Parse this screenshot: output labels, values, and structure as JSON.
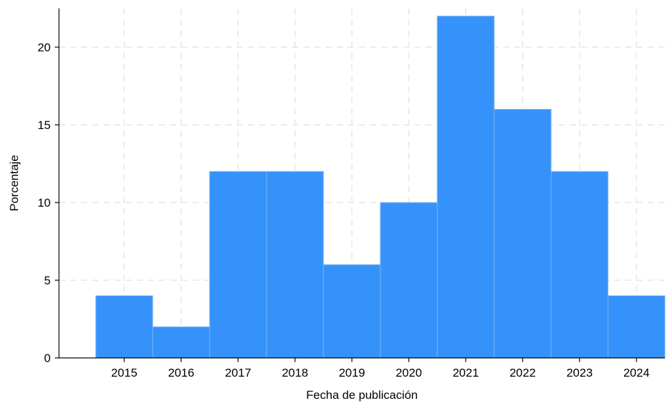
{
  "chart_data": {
    "type": "bar",
    "categories": [
      "2015",
      "2016",
      "2017",
      "2018",
      "2019",
      "2020",
      "2021",
      "2022",
      "2023",
      "2024"
    ],
    "values": [
      4,
      2,
      12,
      12,
      6,
      10,
      22,
      16,
      12,
      4
    ],
    "xlabel": "Fecha de publicación",
    "ylabel": "Porcentaje",
    "ylim": [
      0,
      22.5
    ],
    "yticks": [
      0,
      5,
      10,
      15,
      20
    ],
    "grid": true,
    "bar_color": "#3592fb"
  }
}
